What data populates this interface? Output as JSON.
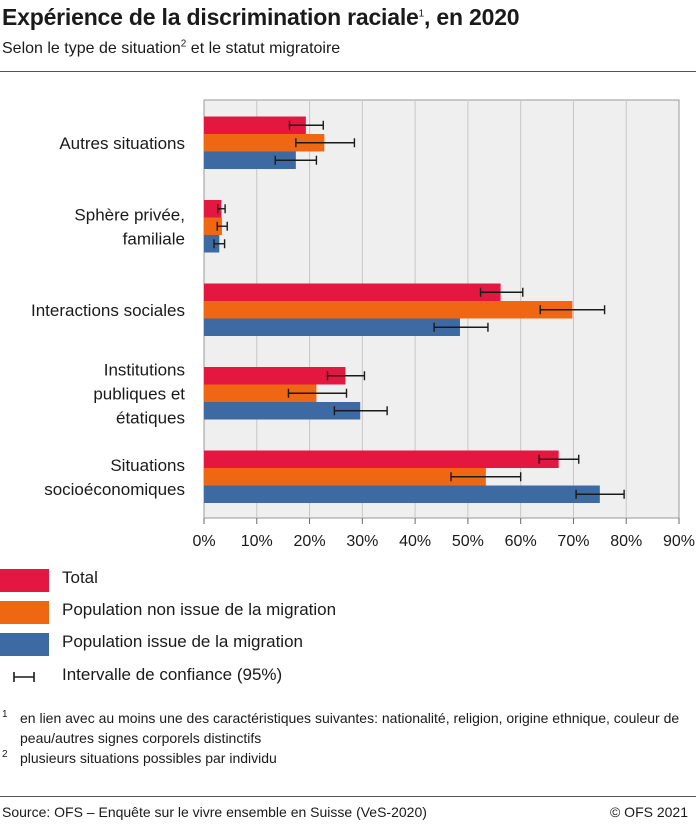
{
  "title": {
    "text": "Expérience de la discrimination raciale",
    "sup": "1",
    "suffix": ", en 2020"
  },
  "subtitle": {
    "text": "Selon le type de situation",
    "sup": "2",
    "suffix": " et le statut migratoire"
  },
  "chart_data": {
    "type": "bar",
    "orientation": "horizontal",
    "categories": [
      "Autres situations",
      "Sphère privée, familiale",
      "Interactions sociales",
      "Institutions publiques et étatiques",
      "Situations socioéconomiques"
    ],
    "category_lines": [
      [
        "Autres situations"
      ],
      [
        "Sphère privée,",
        "familiale"
      ],
      [
        "Interactions sociales"
      ],
      [
        "Institutions",
        "publiques et",
        "étatiques"
      ],
      [
        "Situations",
        "socioéconomiques"
      ]
    ],
    "series": [
      {
        "name": "Total",
        "color": "#e3173f",
        "values": [
          19.3,
          3.3,
          56.2,
          26.8,
          67.2
        ],
        "ci": [
          [
            16.2,
            22.6
          ],
          [
            2.6,
            4.0
          ],
          [
            52.4,
            60.4
          ],
          [
            23.4,
            30.4
          ],
          [
            63.5,
            71.0
          ]
        ]
      },
      {
        "name": "Population non issue de la migration",
        "color": "#ef6613",
        "values": [
          22.8,
          3.4,
          69.8,
          21.3,
          53.4
        ],
        "ci": [
          [
            17.4,
            28.5
          ],
          [
            2.5,
            4.4
          ],
          [
            63.7,
            75.9
          ],
          [
            16.0,
            27.0
          ],
          [
            46.8,
            60.0
          ]
        ]
      },
      {
        "name": "Population issue de la migration",
        "color": "#3d6aa3",
        "values": [
          17.4,
          2.9,
          48.5,
          29.6,
          75.0
        ],
        "ci": [
          [
            13.5,
            21.3
          ],
          [
            1.9,
            3.9
          ],
          [
            43.6,
            53.8
          ],
          [
            24.7,
            34.7
          ],
          [
            70.5,
            79.6
          ]
        ]
      }
    ],
    "xlim": [
      0,
      90
    ],
    "xticks": [
      "0%",
      "10%",
      "20%",
      "30%",
      "40%",
      "50%",
      "60%",
      "70%",
      "80%",
      "90%"
    ],
    "grid": true,
    "legend_position": "bottom",
    "ci_label": "Intervalle de confiance (95%)"
  },
  "notes": [
    {
      "mark": "1",
      "text": "en lien avec au moins une des caractéristiques suivantes: nationalité,  religion, origine ethnique, couleur de peau/autres signes corporels distinctifs"
    },
    {
      "mark": "2",
      "text": "plusieurs situations possibles par individu"
    }
  ],
  "source": "Source: OFS – Enquête sur le vivre ensemble en Suisse (VeS-2020)",
  "copyright": "© OFS 2021"
}
